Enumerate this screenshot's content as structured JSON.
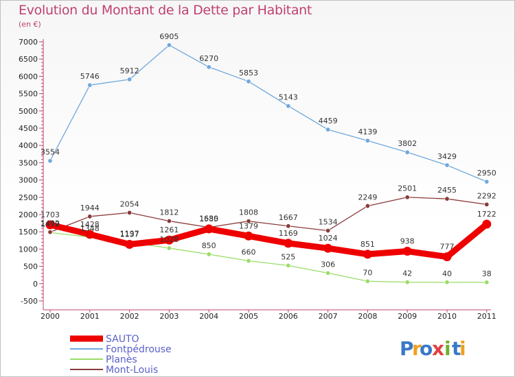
{
  "chart_data": {
    "type": "line",
    "title": "Evolution du Montant de la Dette par Habitant",
    "unit": "(en €)",
    "x": [
      "2000",
      "2001",
      "2002",
      "2003",
      "2004",
      "2005",
      "2006",
      "2007",
      "2008",
      "2009",
      "2010",
      "2011"
    ],
    "ylim": [
      -500,
      7000
    ],
    "yticks": [
      -500,
      0,
      500,
      1000,
      1500,
      2000,
      2500,
      3000,
      3500,
      4000,
      4500,
      5000,
      5500,
      6000,
      6500,
      7000
    ],
    "grid": false,
    "legend_position": "bottom-left",
    "series": [
      {
        "name": "SAUTO",
        "color": "#ee0000",
        "values": [
          1703,
          1428,
          1137,
          1261,
          1585,
          1379,
          1169,
          1024,
          851,
          938,
          777,
          1722
        ]
      },
      {
        "name": "Fontpédrouse",
        "color": "#6fa8dc",
        "values": [
          3554,
          5746,
          5912,
          6905,
          6270,
          5853,
          5143,
          4459,
          4139,
          3802,
          3429,
          2950
        ]
      },
      {
        "name": "Planès",
        "color": "#99dd66",
        "values": [
          1479,
          1348,
          1197,
          1028,
          850,
          660,
          525,
          306,
          70,
          42,
          40,
          38
        ]
      },
      {
        "name": "Mont-Louis",
        "color": "#8b3a3a",
        "values": [
          1492,
          1944,
          2054,
          1812,
          1630,
          1808,
          1667,
          1534,
          2249,
          2501,
          2455,
          2292
        ]
      }
    ]
  },
  "logo": {
    "text": "Proxiti",
    "letters": [
      "P",
      "r",
      "o",
      "x",
      "i",
      "t",
      "i"
    ],
    "colors": [
      "#3a78c8",
      "#f0a020",
      "#3a78c8",
      "#e04040",
      "#70b030",
      "#3a78c8",
      "#f0a020"
    ]
  }
}
